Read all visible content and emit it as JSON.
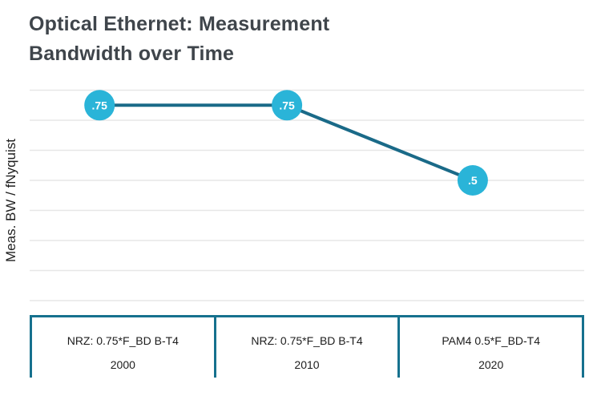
{
  "header": {
    "title": "Optical Ethernet: Measurement Bandwidth over Time"
  },
  "y_axis": {
    "label": "Meas. BW / fNyquist"
  },
  "x_axis_table": {
    "cells": [
      {
        "label": "NRZ: 0.75*F_BD B-T4",
        "year": "2000"
      },
      {
        "label": "NRZ: 0.75*F_BD B-T4",
        "year": "2010"
      },
      {
        "label": "PAM4 0.5*F_BD-T4",
        "year": "2020"
      }
    ]
  },
  "chart_data": {
    "type": "line",
    "title": "Optical Ethernet: Measurement Bandwidth over Time",
    "xlabel": "",
    "ylabel": "Meas. BW / fNyquist",
    "categories": [
      "2000",
      "2010",
      "2020"
    ],
    "category_descriptions": [
      "NRZ: 0.75*F_BD B-T4",
      "NRZ: 0.75*F_BD B-T4",
      "PAM4 0.5*F_BD-T4"
    ],
    "series": [
      {
        "name": "Meas. BW / fNyquist",
        "values": [
          0.75,
          0.75,
          0.5
        ]
      }
    ],
    "point_labels": [
      ".75",
      ".75",
      ".5"
    ],
    "ylim": [
      0.05,
      0.85
    ],
    "gridline_values": [
      0.8,
      0.7,
      0.6,
      0.5,
      0.4,
      0.3,
      0.2,
      0.1
    ],
    "grid": "horizontal",
    "legend": "none",
    "y_tick_labels": "none",
    "colors": {
      "point_fill": "#2ab4d8",
      "line": "#1a6a88",
      "table_border": "#16718e",
      "gridline": "#e7e7e7",
      "title_text": "#3f454b",
      "axis_text": "#1d1d1d",
      "point_label_text": "#ffffff"
    }
  }
}
